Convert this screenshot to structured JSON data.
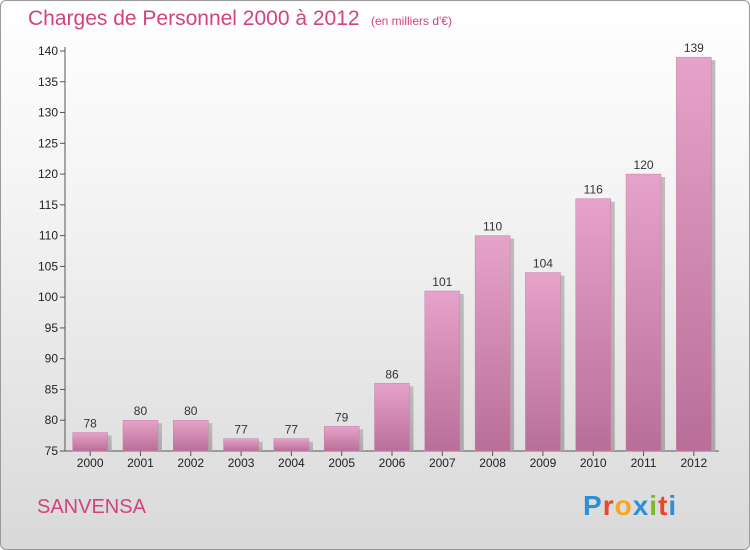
{
  "chart_data": {
    "type": "bar",
    "title": "Charges de Personnel 2000 à 2012",
    "subtitle": "(en milliers d'€)",
    "categories": [
      "2000",
      "2001",
      "2002",
      "2003",
      "2004",
      "2005",
      "2006",
      "2007",
      "2008",
      "2009",
      "2010",
      "2011",
      "2012"
    ],
    "values": [
      78,
      80,
      80,
      77,
      77,
      79,
      86,
      101,
      110,
      104,
      116,
      120,
      139
    ],
    "ylim": [
      75,
      140
    ],
    "yticks": [
      75,
      80,
      85,
      90,
      95,
      100,
      105,
      110,
      115,
      120,
      125,
      130,
      135,
      140
    ],
    "xlabel": "",
    "ylabel": "",
    "grid": false,
    "bar_color": "#d67bab"
  },
  "footer": {
    "commune": "SANVENSA",
    "brand": "Proxiti",
    "brand_colors": [
      "#2e8fd6",
      "#e8462f",
      "#f5a623",
      "#2e8fd6",
      "#7cb82f",
      "#e8462f",
      "#2e8fd6"
    ]
  }
}
